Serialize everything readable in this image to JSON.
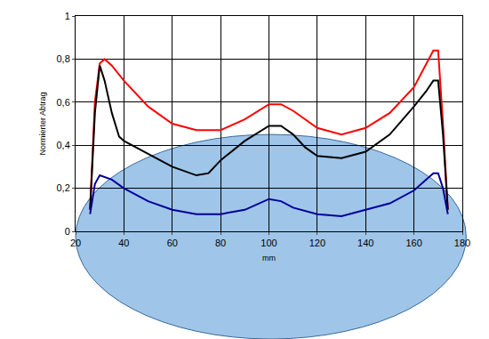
{
  "chart_data": {
    "type": "line",
    "x_label": "mm",
    "y_label": "Normierter Abtrag",
    "xlim": [
      20,
      180
    ],
    "xticks": [
      20,
      40,
      60,
      80,
      100,
      120,
      140,
      160,
      180
    ],
    "ylim": [
      0,
      1
    ],
    "yticks": [
      {
        "value": 0,
        "label": "0"
      },
      {
        "value": 0.2,
        "label": "0,2"
      },
      {
        "value": 0.4,
        "label": "0,4"
      },
      {
        "value": 0.6,
        "label": "0,6"
      },
      {
        "value": 0.8,
        "label": "0,8"
      },
      {
        "value": 1,
        "label": "1"
      }
    ],
    "grid": true,
    "series": [
      {
        "color": "#ff0000",
        "x": [
          26,
          28,
          30,
          32,
          35,
          40,
          50,
          60,
          70,
          80,
          90,
          100,
          105,
          110,
          120,
          130,
          140,
          150,
          160,
          165,
          168,
          170,
          172,
          174
        ],
        "values": [
          0.1,
          0.6,
          0.78,
          0.8,
          0.77,
          0.7,
          0.58,
          0.5,
          0.47,
          0.47,
          0.52,
          0.59,
          0.59,
          0.56,
          0.48,
          0.45,
          0.48,
          0.55,
          0.67,
          0.78,
          0.84,
          0.84,
          0.5,
          0.1
        ]
      },
      {
        "color": "#000000",
        "x": [
          26,
          28,
          30,
          32,
          35,
          38,
          40,
          50,
          60,
          70,
          75,
          80,
          90,
          100,
          105,
          110,
          115,
          120,
          130,
          140,
          150,
          160,
          165,
          168,
          170,
          172,
          174
        ],
        "values": [
          0.1,
          0.55,
          0.77,
          0.7,
          0.55,
          0.44,
          0.42,
          0.36,
          0.3,
          0.26,
          0.27,
          0.33,
          0.42,
          0.49,
          0.49,
          0.45,
          0.39,
          0.35,
          0.34,
          0.37,
          0.45,
          0.58,
          0.65,
          0.7,
          0.7,
          0.45,
          0.1
        ]
      },
      {
        "color": "#000099",
        "x": [
          26,
          28,
          30,
          35,
          40,
          50,
          60,
          70,
          80,
          90,
          100,
          105,
          110,
          120,
          130,
          140,
          150,
          160,
          165,
          168,
          170,
          172,
          174
        ],
        "values": [
          0.08,
          0.22,
          0.26,
          0.24,
          0.2,
          0.14,
          0.1,
          0.08,
          0.08,
          0.1,
          0.15,
          0.14,
          0.11,
          0.08,
          0.07,
          0.1,
          0.13,
          0.19,
          0.24,
          0.27,
          0.27,
          0.2,
          0.08
        ]
      }
    ]
  }
}
